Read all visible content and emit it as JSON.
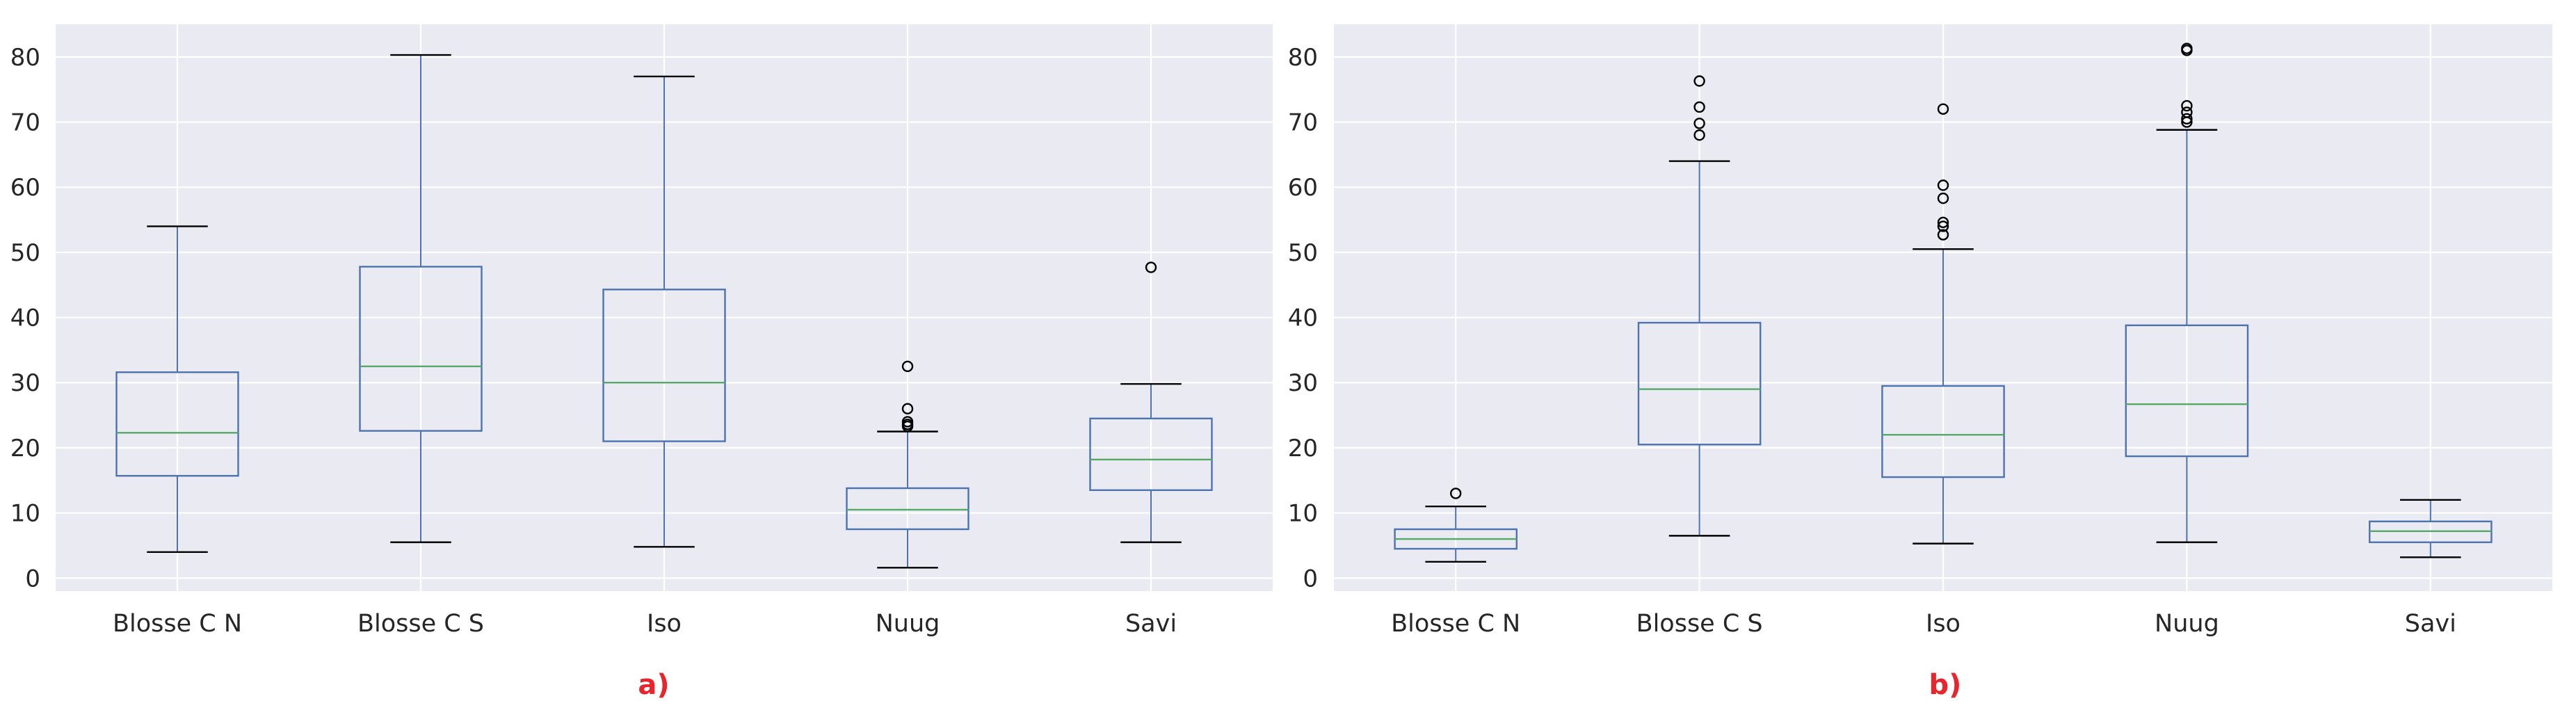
{
  "chart_data": [
    {
      "type": "box",
      "panel_label": "a)",
      "categories": [
        "Blosse C N",
        "Blosse C S",
        "Iso",
        "Nuug",
        "Savi"
      ],
      "ylim": [
        -2,
        85
      ],
      "yticks": [
        0,
        10,
        20,
        30,
        40,
        50,
        60,
        70,
        80
      ],
      "grid": true,
      "boxes": [
        {
          "category": "Blosse C N",
          "whisker_low": 4,
          "q1": 15.7,
          "median": 22.3,
          "q3": 31.6,
          "whisker_high": 54,
          "outliers": []
        },
        {
          "category": "Blosse C S",
          "whisker_low": 5.5,
          "q1": 22.6,
          "median": 32.5,
          "q3": 47.8,
          "whisker_high": 80.3,
          "outliers": []
        },
        {
          "category": "Iso",
          "whisker_low": 4.8,
          "q1": 21,
          "median": 30,
          "q3": 44.3,
          "whisker_high": 77,
          "outliers": []
        },
        {
          "category": "Nuug",
          "whisker_low": 1.6,
          "q1": 7.5,
          "median": 10.5,
          "q3": 13.8,
          "whisker_high": 22.5,
          "outliers": [
            23.3,
            23.6,
            24,
            26,
            32.5
          ]
        },
        {
          "category": "Savi",
          "whisker_low": 5.5,
          "q1": 13.5,
          "median": 18.2,
          "q3": 24.5,
          "whisker_high": 29.8,
          "outliers": [
            47.7
          ]
        }
      ]
    },
    {
      "type": "box",
      "panel_label": "b)",
      "categories": [
        "Blosse C N",
        "Blosse C S",
        "Iso",
        "Nuug",
        "Savi"
      ],
      "ylim": [
        -2,
        85
      ],
      "yticks": [
        0,
        10,
        20,
        30,
        40,
        50,
        60,
        70,
        80
      ],
      "grid": true,
      "boxes": [
        {
          "category": "Blosse C N",
          "whisker_low": 2.5,
          "q1": 4.5,
          "median": 6,
          "q3": 7.5,
          "whisker_high": 11,
          "outliers": [
            13
          ]
        },
        {
          "category": "Blosse C S",
          "whisker_low": 6.5,
          "q1": 20.5,
          "median": 29,
          "q3": 39.2,
          "whisker_high": 64,
          "outliers": [
            68,
            69.8,
            72.3,
            76.3
          ]
        },
        {
          "category": "Iso",
          "whisker_low": 5.3,
          "q1": 15.5,
          "median": 22,
          "q3": 29.5,
          "whisker_high": 50.5,
          "outliers": [
            52.7,
            54,
            54.6,
            58.3,
            60.3,
            72
          ]
        },
        {
          "category": "Nuug",
          "whisker_low": 5.5,
          "q1": 18.7,
          "median": 26.7,
          "q3": 38.8,
          "whisker_high": 68.8,
          "outliers": [
            70,
            70.5,
            71.5,
            72.5,
            81,
            81.3
          ]
        },
        {
          "category": "Savi",
          "whisker_low": 3.2,
          "q1": 5.5,
          "median": 7.2,
          "q3": 8.7,
          "whisker_high": 12,
          "outliers": []
        }
      ]
    }
  ],
  "colors": {
    "plot_bg": "#eaeaf2",
    "grid": "#ffffff",
    "box": "#4c72b0",
    "median": "#55a868",
    "whisker_cap": "#000000",
    "outlier": "#000000",
    "panel_label": "#e8242c"
  }
}
